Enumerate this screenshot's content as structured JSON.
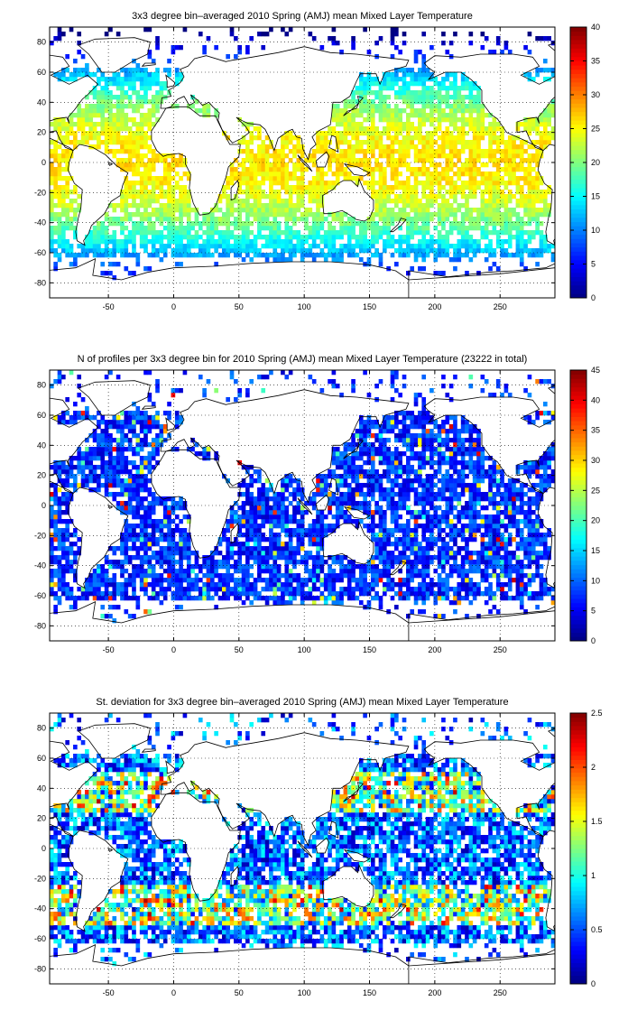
{
  "chart_data": [
    {
      "type": "heatmap",
      "title": "3x3 degree bin–averaged 2010 Spring (AMJ) mean Mixed Layer Temperature",
      "xlabel": "",
      "ylabel": "",
      "xlim": [
        -95,
        292
      ],
      "ylim": [
        -90,
        90
      ],
      "xticks": [
        -50,
        0,
        50,
        100,
        150,
        200,
        250
      ],
      "yticks": [
        -80,
        -60,
        -40,
        -20,
        0,
        20,
        40,
        60,
        80
      ],
      "colorbar": {
        "min": 0,
        "max": 40,
        "ticks": [
          0,
          5,
          10,
          15,
          20,
          25,
          30,
          35,
          40
        ]
      },
      "colormap": "jet",
      "grid": true,
      "field": "temperature"
    },
    {
      "type": "heatmap",
      "title": "N of profiles per 3x3 degree bin for 2010 Spring (AMJ) mean Mixed Layer Temperature  (23222 in total)",
      "xlabel": "",
      "ylabel": "",
      "xlim": [
        -95,
        292
      ],
      "ylim": [
        -90,
        90
      ],
      "xticks": [
        -50,
        0,
        50,
        100,
        150,
        200,
        250
      ],
      "yticks": [
        -80,
        -60,
        -40,
        -20,
        0,
        20,
        40,
        60,
        80
      ],
      "colorbar": {
        "min": 0,
        "max": 45,
        "ticks": [
          0,
          5,
          10,
          15,
          20,
          25,
          30,
          35,
          40,
          45
        ]
      },
      "colormap": "jet",
      "grid": true,
      "field": "count"
    },
    {
      "type": "heatmap",
      "title": "St. deviation for 3x3 degree bin–averaged 2010 Spring (AMJ) mean Mixed Layer Temperature",
      "xlabel": "",
      "ylabel": "",
      "xlim": [
        -95,
        292
      ],
      "ylim": [
        -90,
        90
      ],
      "xticks": [
        -50,
        0,
        50,
        100,
        150,
        200,
        250
      ],
      "yticks": [
        -80,
        -60,
        -40,
        -20,
        0,
        20,
        40,
        60,
        80
      ],
      "colorbar": {
        "min": 0,
        "max": 2.5,
        "ticks": [
          0,
          0.5,
          1,
          1.5,
          2,
          2.5
        ]
      },
      "colormap": "jet",
      "grid": true,
      "field": "stdev"
    }
  ]
}
